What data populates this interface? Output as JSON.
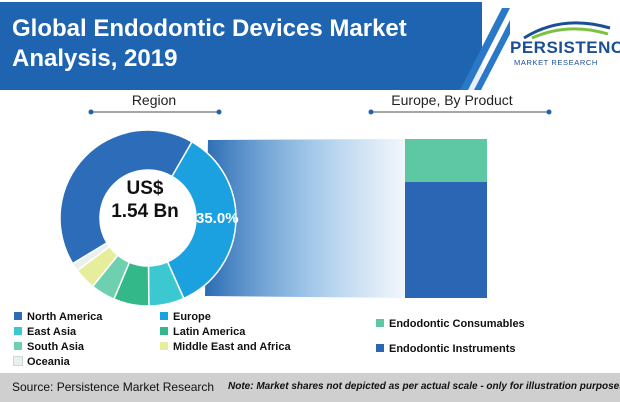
{
  "title": "Global Endodontic Devices Market\nAnalysis, 2019",
  "logo": {
    "main": "PERSISTENCE",
    "sub": "MARKET RESEARCH"
  },
  "region_label": "Region",
  "product_label": "Europe, By Product",
  "center_text": {
    "line1": "US$",
    "line2": "1.54 Bn"
  },
  "footer": {
    "source": "Source: Persistence Market Research",
    "note": "Note: Market shares not depicted as per actual scale - only for illustration purposes"
  },
  "colors": {
    "banner": "#1f64b0",
    "footer": "#cfcfcf"
  },
  "chart_data": [
    {
      "type": "pie",
      "title": "Region",
      "categories": [
        "North America",
        "Europe",
        "East Asia",
        "Latin America",
        "South Asia",
        "Middle East and Africa",
        "Oceania"
      ],
      "values": [
        42.0,
        35.0,
        6.5,
        6.5,
        4.5,
        4.0,
        1.5
      ],
      "labels": {
        "Europe": "35.0%"
      },
      "colors": [
        "#2c6cb8",
        "#1ba1e0",
        "#3cc8d0",
        "#32b889",
        "#6fd0b0",
        "#e6ee9c",
        "#e8f0f0"
      ],
      "legend": "bottom"
    },
    {
      "type": "bar",
      "title": "Europe, By Product",
      "stacked": true,
      "categories": [
        "Europe"
      ],
      "series": [
        {
          "name": "Endodontic Consumables",
          "values": [
            27
          ],
          "color": "#5ec8a4"
        },
        {
          "name": "Endodontic Instruments",
          "values": [
            73
          ],
          "color": "#2b66b4"
        }
      ]
    }
  ],
  "legend_left": [
    {
      "label": "North America",
      "color": "#2c6cb8"
    },
    {
      "label": "Europe",
      "color": "#1ba1e0"
    },
    {
      "label": "East Asia",
      "color": "#3cc8d0"
    },
    {
      "label": "Latin America",
      "color": "#32b889"
    },
    {
      "label": "South Asia",
      "color": "#6fd0b0"
    },
    {
      "label": "Middle East and Africa",
      "color": "#e6ee9c"
    },
    {
      "label": "Oceania",
      "color": "#e8f0f0"
    }
  ],
  "legend_right": [
    {
      "label": "Endodontic Consumables",
      "color": "#5ec8a4"
    },
    {
      "label": "Endodontic Instruments",
      "color": "#2b66b4"
    }
  ]
}
